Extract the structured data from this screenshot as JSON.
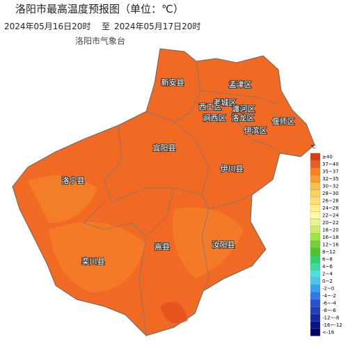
{
  "header": {
    "title": "洛阳市最高温度预报图（单位：℃）",
    "period_start": "2024年05月16日20时",
    "period_sep": "至",
    "period_end": "2024年05月17日20时",
    "agency": "洛阳市气象台"
  },
  "regions": [
    {
      "label": "新安县"
    },
    {
      "label": "孟津区"
    },
    {
      "label": "西工区"
    },
    {
      "label": "老城区"
    },
    {
      "label": "瀍河区"
    },
    {
      "label": "涧西区"
    },
    {
      "label": "洛龙区"
    },
    {
      "label": "偃师区"
    },
    {
      "label": "伊滨区"
    },
    {
      "label": "宜阳县"
    },
    {
      "label": "伊川县"
    },
    {
      "label": "洛宁县"
    },
    {
      "label": "嵩县"
    },
    {
      "label": "汝阳县"
    },
    {
      "label": "栾川县"
    }
  ],
  "legend": {
    "unit": "℃",
    "items": [
      {
        "label": "≥40",
        "color": "#dc3c14"
      },
      {
        "label": "37~40",
        "color": "#f05a1e"
      },
      {
        "label": "35~37",
        "color": "#f5821e"
      },
      {
        "label": "32~35",
        "color": "#f7a030"
      },
      {
        "label": "30~32",
        "color": "#f9be46"
      },
      {
        "label": "28~30",
        "color": "#fbd25a"
      },
      {
        "label": "26~28",
        "color": "#fde070"
      },
      {
        "label": "24~26",
        "color": "#fff08a"
      },
      {
        "label": "22~24",
        "color": "#fffaa0"
      },
      {
        "label": "20~22",
        "color": "#e6f58c"
      },
      {
        "label": "18~20",
        "color": "#c8f064"
      },
      {
        "label": "16~18",
        "color": "#9be646"
      },
      {
        "label": "12~16",
        "color": "#6ed232"
      },
      {
        "label": "8~12",
        "color": "#46c828"
      },
      {
        "label": "6~8",
        "color": "#32d264"
      },
      {
        "label": "4~6",
        "color": "#3cdca0"
      },
      {
        "label": "2~4",
        "color": "#46e6dc"
      },
      {
        "label": "0~2",
        "color": "#46c8f0"
      },
      {
        "label": "-2~0",
        "color": "#3ca0f0"
      },
      {
        "label": "-4~-2",
        "color": "#3278e6"
      },
      {
        "label": "-6~-4",
        "color": "#2850d2"
      },
      {
        "label": "-8~-6",
        "color": "#1e3cbe"
      },
      {
        "label": "-12~-8",
        "color": "#1428a0"
      },
      {
        "label": "-16~-12",
        "color": "#0a1482"
      },
      {
        "label": "<-16",
        "color": "#000064"
      }
    ]
  }
}
